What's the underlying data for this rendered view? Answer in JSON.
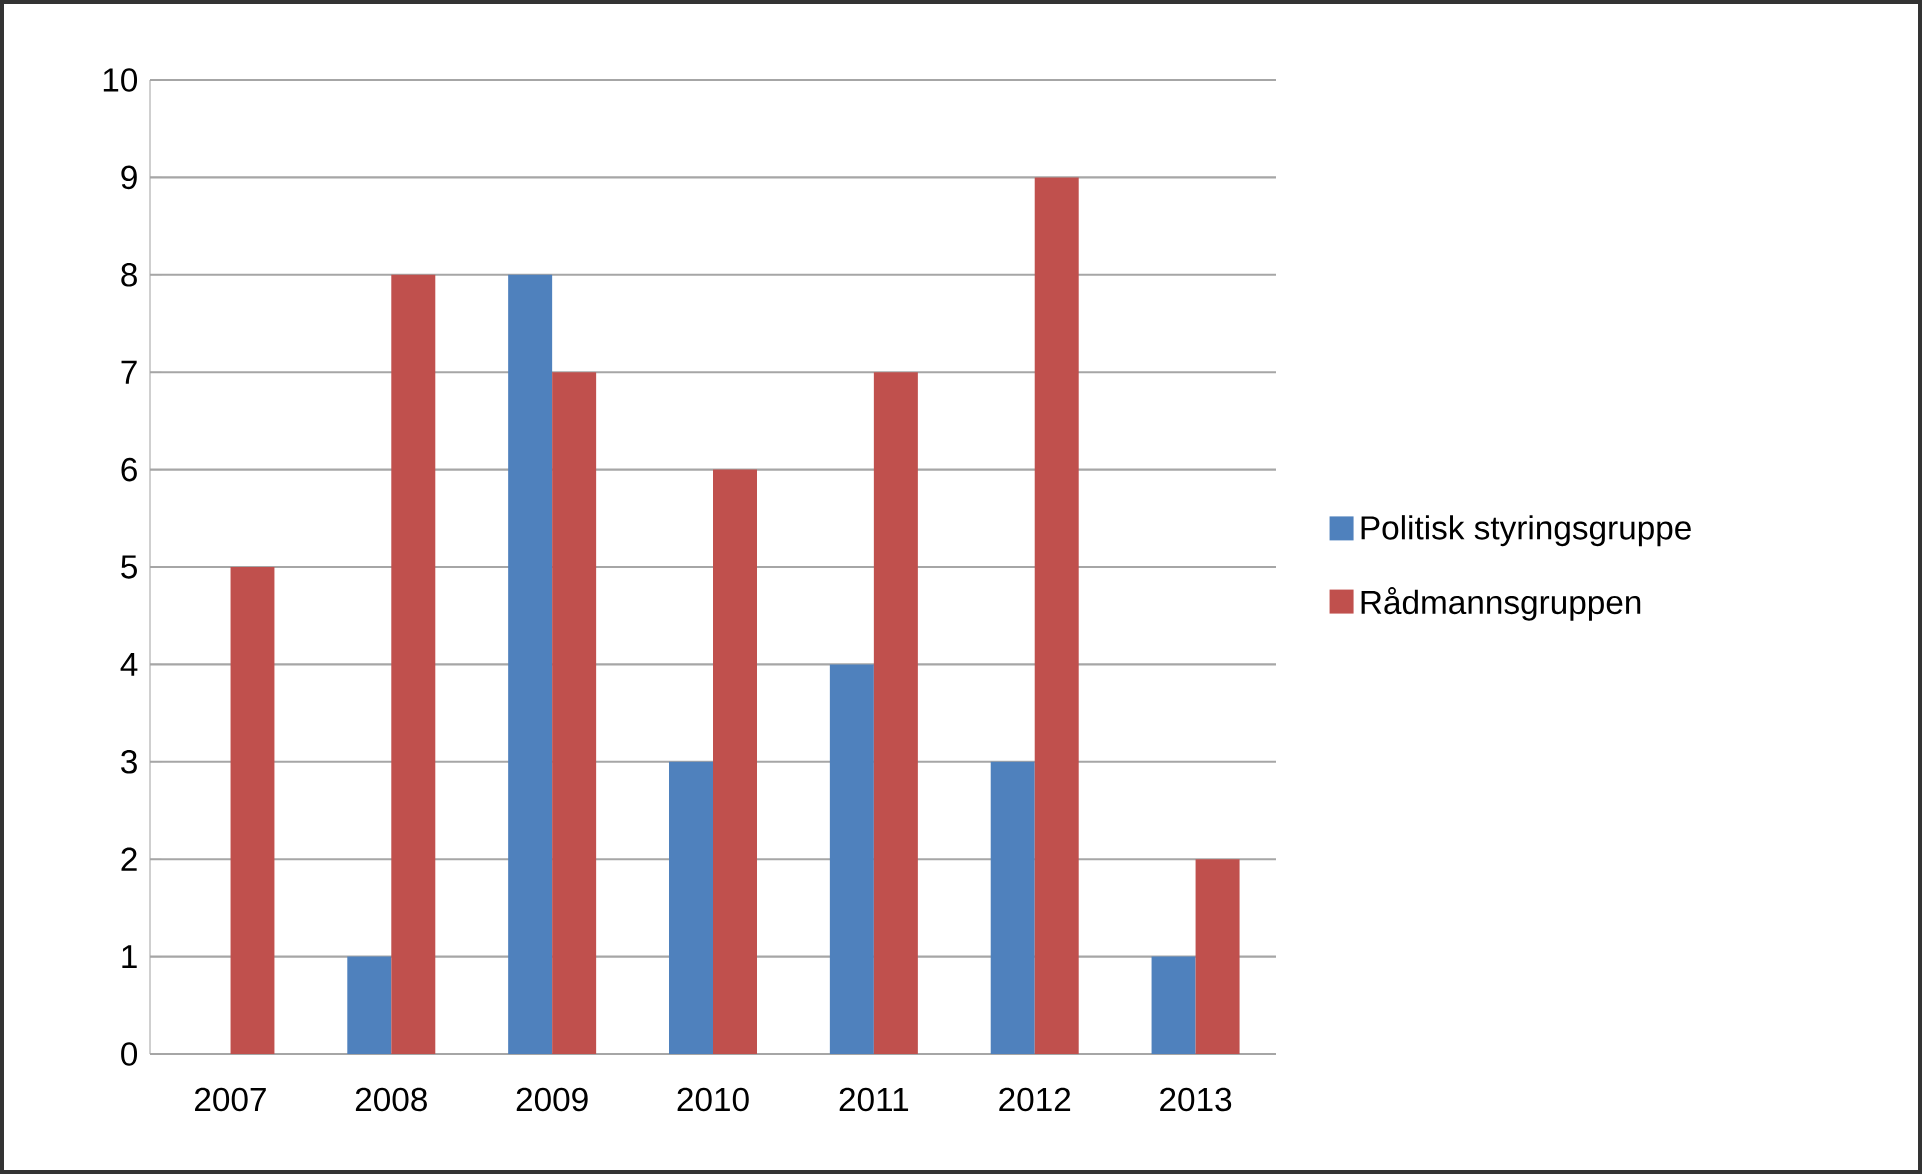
{
  "chart_data": {
    "type": "bar",
    "categories": [
      "2007",
      "2008",
      "2009",
      "2010",
      "2011",
      "2012",
      "2013"
    ],
    "series": [
      {
        "name": "Politisk styringsgruppe",
        "color": "#4f81bd",
        "values": [
          0,
          1,
          8,
          3,
          4,
          3,
          1
        ]
      },
      {
        "name": "Rådmannsgruppen",
        "color": "#c0504d",
        "values": [
          5,
          8,
          7,
          6,
          7,
          9,
          2
        ]
      }
    ],
    "ylim": [
      0,
      10
    ],
    "yticks": [
      0,
      1,
      2,
      3,
      4,
      5,
      6,
      7,
      8,
      9,
      10
    ],
    "grid": "y",
    "legend": "right"
  }
}
